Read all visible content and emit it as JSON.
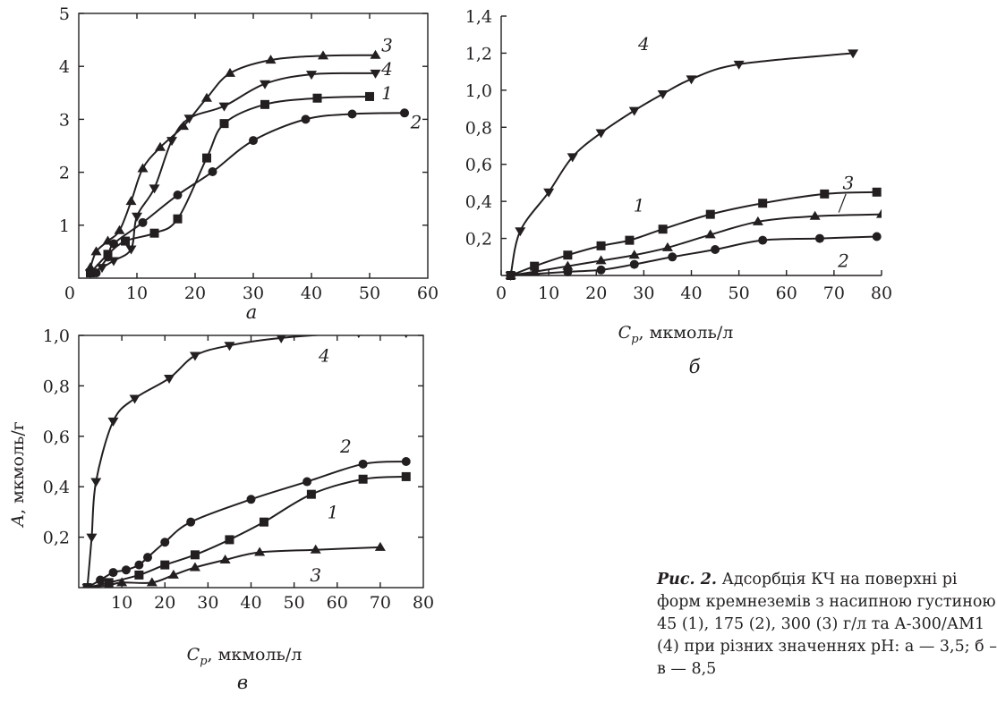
{
  "y_axis_title": {
    "symbol": "A",
    "rest": ", мкмоль/г"
  },
  "x_axis_title": {
    "symbol": "C",
    "sub": "p",
    "rest": ", мкмоль/л"
  },
  "caption": {
    "label": "Рис. 2.",
    "lines": [
      " Адсорбція КЧ на поверхні рі",
      "форм кремнеземів з насипною густиною",
      "45 (1), 175 (2), 300 (3) г/л та А-300/АМ1",
      "(4) при різних значеннях pH: a — 3,5; б –",
      "в — 8,5"
    ]
  },
  "chart_data": [
    {
      "panel": "a",
      "type": "line",
      "xlim": [
        0,
        60
      ],
      "ylim": [
        0,
        5
      ],
      "xticks": [
        "0",
        "10",
        "20",
        "30",
        "40",
        "50",
        "60"
      ],
      "yticks": [
        "1",
        "2",
        "3",
        "4",
        "5"
      ],
      "series": [
        {
          "name": "1",
          "marker": "square",
          "x": [
            2,
            5,
            8,
            13,
            17,
            22,
            25,
            32,
            41,
            50
          ],
          "y": [
            0.1,
            0.45,
            0.7,
            0.85,
            1.12,
            2.27,
            2.92,
            3.28,
            3.4,
            3.43
          ]
        },
        {
          "name": "2",
          "marker": "circle",
          "x": [
            3,
            5,
            6,
            11,
            17,
            23,
            30,
            39,
            47,
            56
          ],
          "y": [
            0.1,
            0.4,
            0.65,
            1.05,
            1.57,
            2.01,
            2.6,
            3.0,
            3.1,
            3.12
          ]
        },
        {
          "name": "3",
          "marker": "triangle-up",
          "x": [
            2,
            3,
            5,
            7,
            9,
            11,
            14,
            18,
            22,
            26,
            33,
            42,
            51
          ],
          "y": [
            0.2,
            0.5,
            0.7,
            0.9,
            1.45,
            2.07,
            2.47,
            2.87,
            3.4,
            3.87,
            4.12,
            4.2,
            4.21
          ]
        },
        {
          "name": "4",
          "marker": "triangle-down",
          "x": [
            2,
            4,
            6,
            9,
            10,
            13,
            16,
            19,
            25,
            32,
            40,
            51
          ],
          "y": [
            0.1,
            0.2,
            0.33,
            0.55,
            1.17,
            1.7,
            2.6,
            3.02,
            3.25,
            3.67,
            3.85,
            3.87
          ]
        }
      ],
      "labels": [
        {
          "text": "3",
          "x": 53,
          "y": 4.4
        },
        {
          "text": "4",
          "x": 53,
          "y": 3.95
        },
        {
          "text": "1",
          "x": 53,
          "y": 3.5
        },
        {
          "text": "2",
          "x": 58,
          "y": 2.95
        }
      ]
    },
    {
      "panel": "б",
      "type": "line",
      "xlim": [
        0,
        80
      ],
      "ylim": [
        0,
        1.4
      ],
      "xticks": [
        "0",
        "10",
        "20",
        "30",
        "40",
        "50",
        "60",
        "70",
        "80"
      ],
      "yticks": [
        "0,2",
        "0,4",
        "0,6",
        "0,8",
        "1,0",
        "1,2",
        "1,4"
      ],
      "series": [
        {
          "name": "1",
          "marker": "square",
          "x": [
            2,
            7,
            14,
            21,
            27,
            34,
            44,
            55,
            68,
            79
          ],
          "y": [
            0,
            0.05,
            0.11,
            0.16,
            0.19,
            0.25,
            0.33,
            0.39,
            0.44,
            0.45
          ]
        },
        {
          "name": "2",
          "marker": "circle",
          "x": [
            2,
            14,
            21,
            28,
            36,
            45,
            55,
            67,
            79
          ],
          "y": [
            0,
            0.02,
            0.03,
            0.06,
            0.1,
            0.14,
            0.19,
            0.2,
            0.21
          ]
        },
        {
          "name": "3",
          "marker": "triangle-up",
          "x": [
            2,
            7,
            14,
            21,
            28,
            35,
            44,
            54,
            66,
            80
          ],
          "y": [
            0,
            0.02,
            0.05,
            0.08,
            0.11,
            0.15,
            0.22,
            0.29,
            0.32,
            0.33
          ]
        },
        {
          "name": "4",
          "marker": "triangle-down",
          "x": [
            2,
            4,
            10,
            15,
            21,
            28,
            34,
            40,
            50,
            74
          ],
          "y": [
            0,
            0.24,
            0.45,
            0.64,
            0.77,
            0.89,
            0.98,
            1.06,
            1.14,
            1.2
          ]
        }
      ],
      "labels": [
        {
          "text": "4",
          "x": 30,
          "y": 1.25
        },
        {
          "text": "1",
          "x": 29,
          "y": 0.38
        },
        {
          "text": "3",
          "x": 73,
          "y": 0.5
        },
        {
          "text": "2",
          "x": 72,
          "y": 0.08
        }
      ]
    },
    {
      "panel": "в",
      "type": "line",
      "xlim": [
        0,
        80
      ],
      "ylim": [
        0,
        1.0
      ],
      "xticks": [
        "0",
        "10",
        "20",
        "30",
        "40",
        "50",
        "60",
        "70",
        "80"
      ],
      "yticks": [
        "0,2",
        "0,4",
        "0,6",
        "0,8",
        "1,0"
      ],
      "series": [
        {
          "name": "1",
          "marker": "square",
          "x": [
            2,
            7,
            14,
            20,
            27,
            35,
            43,
            54,
            66,
            76
          ],
          "y": [
            0,
            0.02,
            0.05,
            0.09,
            0.13,
            0.19,
            0.26,
            0.37,
            0.43,
            0.44
          ]
        },
        {
          "name": "2",
          "marker": "circle",
          "x": [
            2,
            5,
            8,
            11,
            14,
            16,
            20,
            26,
            40,
            53,
            66,
            76
          ],
          "y": [
            0,
            0.03,
            0.06,
            0.07,
            0.09,
            0.12,
            0.18,
            0.26,
            0.35,
            0.42,
            0.49,
            0.5
          ]
        },
        {
          "name": "3",
          "marker": "triangle-up",
          "x": [
            2,
            7,
            10,
            17,
            22,
            27,
            34,
            42,
            55,
            70
          ],
          "y": [
            0,
            0.01,
            0.02,
            0.02,
            0.05,
            0.08,
            0.11,
            0.14,
            0.15,
            0.16
          ]
        },
        {
          "name": "4",
          "marker": "triangle-down",
          "x": [
            2,
            3,
            4,
            8,
            13,
            21,
            27,
            35,
            47,
            65,
            76
          ],
          "y": [
            0,
            0.2,
            0.42,
            0.66,
            0.75,
            0.83,
            0.92,
            0.96,
            0.99,
            1.01,
            1.01
          ]
        }
      ],
      "labels": [
        {
          "text": "4",
          "x": 57,
          "y": 0.92
        },
        {
          "text": "2",
          "x": 62,
          "y": 0.56
        },
        {
          "text": "1",
          "x": 59,
          "y": 0.3
        },
        {
          "text": "3",
          "x": 55,
          "y": 0.05
        }
      ]
    }
  ]
}
